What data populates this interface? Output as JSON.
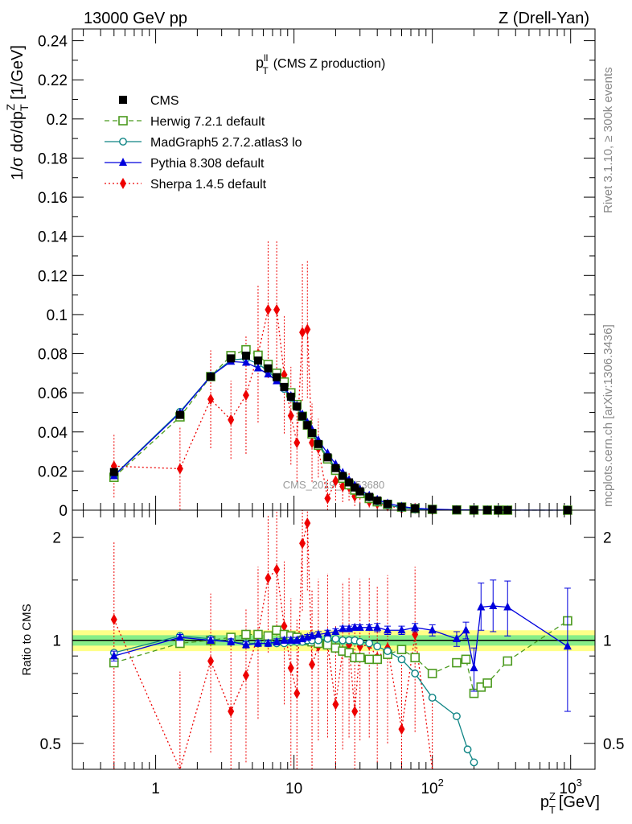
{
  "header": {
    "energy_label": "13000 GeV pp",
    "process_label": "Z (Drell-Yan)",
    "side_label_top": "Rivet 3.1.10, ≥ 300k events",
    "side_label_bottom": "mcplots.cern.ch [arXiv:1306.3436]"
  },
  "chart_data": [
    {
      "type": "scatter",
      "panel": "main",
      "title_main": "p",
      "title_sup": "ll",
      "title_sub": "T",
      "title_rest": "(CMS Z production)",
      "watermark": "CMS_2019_I1753680",
      "ylabel": "1/σ dσ/dp",
      "ylabel_sub": "T",
      "ylabel_sup": "Z",
      "ylabel_unit": "[1/GeV]",
      "xscale": "log",
      "xlim": [
        0.25,
        1500
      ],
      "ylim": [
        0,
        0.246
      ],
      "yticks": [
        0,
        0.02,
        0.04,
        0.06,
        0.08,
        0.1,
        0.12,
        0.14,
        0.16,
        0.18,
        0.2,
        0.22,
        0.24
      ],
      "ytick_labels": [
        "0",
        "0.02",
        "0.04",
        "0.06",
        "0.08",
        "0.1",
        "0.12",
        "0.14",
        "0.16",
        "0.18",
        "0.2",
        "0.22",
        "0.24"
      ],
      "legend_position": "top-left",
      "series": [
        {
          "name": "CMS",
          "color": "#000000",
          "marker": "filled-square",
          "line": "none",
          "x": [
            0.5,
            1.5,
            2.5,
            3.5,
            4.5,
            5.5,
            6.5,
            7.5,
            8.5,
            9.5,
            10.5,
            11.5,
            12.5,
            13.5,
            15,
            17.5,
            20,
            22.5,
            25,
            27.5,
            30,
            35,
            40,
            47.5,
            60,
            75,
            100,
            150,
            200,
            250,
            300,
            350,
            950
          ],
          "y": [
            0.0195,
            0.0487,
            0.0682,
            0.0776,
            0.079,
            0.0765,
            0.0725,
            0.068,
            0.063,
            0.058,
            0.053,
            0.048,
            0.0435,
            0.0395,
            0.0338,
            0.027,
            0.0215,
            0.0175,
            0.0142,
            0.0116,
            0.0096,
            0.0068,
            0.0049,
            0.0032,
            0.0017,
            0.0009,
            0.00045,
            0.00016,
            8e-05,
            4e-05,
            2e-05,
            1e-05,
            1e-06
          ]
        },
        {
          "name": "Herwig 7.2.1 default",
          "color": "#4b9a1e",
          "marker": "open-square",
          "line": "dashed",
          "x": [
            0.5,
            1.5,
            2.5,
            3.5,
            4.5,
            5.5,
            6.5,
            7.5,
            8.5,
            9.5,
            10.5,
            11.5,
            12.5,
            13.5,
            15,
            17.5,
            20,
            22.5,
            25,
            27.5,
            30,
            35,
            40,
            47.5,
            60,
            75,
            100,
            150,
            200,
            250,
            300,
            350,
            950
          ],
          "y": [
            0.0168,
            0.0477,
            0.0683,
            0.079,
            0.082,
            0.0792,
            0.0745,
            0.07,
            0.0655,
            0.06,
            0.054,
            0.048,
            0.0435,
            0.039,
            0.0332,
            0.0262,
            0.0204,
            0.0163,
            0.013,
            0.0103,
            0.0085,
            0.006,
            0.0043,
            0.0029,
            0.0016,
            0.0008,
            0.0004,
            0.00014,
            6e-05,
            3e-05,
            1.5e-05,
            1e-05,
            1e-06
          ]
        },
        {
          "name": "MadGraph5 2.7.2.atlas3 lo",
          "color": "#0f8585",
          "marker": "open-circle",
          "line": "solid",
          "x": [
            0.5,
            1.5,
            2.5,
            3.5,
            4.5,
            5.5,
            6.5,
            7.5,
            8.5,
            9.5,
            10.5,
            11.5,
            12.5,
            13.5,
            15,
            17.5,
            20,
            22.5,
            25,
            27.5,
            30,
            35,
            40,
            47.5,
            60,
            75,
            100,
            150,
            200
          ],
          "y": [
            0.0178,
            0.0503,
            0.0686,
            0.0767,
            0.0775,
            0.0748,
            0.0712,
            0.0668,
            0.062,
            0.0575,
            0.0527,
            0.0478,
            0.0434,
            0.0396,
            0.034,
            0.0272,
            0.0216,
            0.0176,
            0.0142,
            0.0116,
            0.0095,
            0.0065,
            0.0045,
            0.0027,
            0.0012,
            0.0005,
            0.00018,
            3e-05,
            1.2e-05
          ]
        },
        {
          "name": "Pythia 8.308 default",
          "color": "#0000dd",
          "marker": "filled-triangle",
          "line": "solid",
          "x": [
            0.5,
            1.5,
            2.5,
            3.5,
            4.5,
            5.5,
            6.5,
            7.5,
            8.5,
            9.5,
            10.5,
            11.5,
            12.5,
            13.5,
            15,
            17.5,
            20,
            22.5,
            25,
            27.5,
            30,
            35,
            40,
            47.5,
            60,
            75,
            100,
            150,
            200,
            250,
            300,
            350,
            950
          ],
          "y": [
            0.0175,
            0.0498,
            0.0685,
            0.076,
            0.0755,
            0.0726,
            0.0695,
            0.066,
            0.0625,
            0.0584,
            0.0535,
            0.049,
            0.0448,
            0.0412,
            0.0358,
            0.0291,
            0.0235,
            0.0192,
            0.0155,
            0.0127,
            0.0106,
            0.0075,
            0.0054,
            0.0035,
            0.0019,
            0.001,
            0.00048,
            0.00017,
            8e-05,
            5e-05,
            3e-05,
            2e-05,
            1e-06
          ]
        },
        {
          "name": "Sherpa 1.4.5 default",
          "color": "#ee0000",
          "marker": "filled-diamond",
          "line": "dotted",
          "x": [
            0.5,
            1.5,
            2.5,
            3.5,
            4.5,
            5.5,
            6.5,
            7.5,
            8.5,
            9.5,
            10.5,
            11.5,
            12.5,
            13.5,
            15,
            17.5,
            20,
            22.5,
            25,
            27.5,
            30,
            35,
            40,
            47.5,
            60,
            75,
            100
          ],
          "y": [
            0.0225,
            0.0212,
            0.0567,
            0.0462,
            0.0588,
            0.0798,
            0.1025,
            0.1025,
            0.0692,
            0.0483,
            0.0345,
            0.0909,
            0.0924,
            0.0345,
            0.0317,
            0.006,
            0.0149,
            0.0121,
            0.0119,
            0.0071,
            0.0085,
            0.0044,
            0.0034,
            0.0022,
            0.0009,
            0.0009,
            0.0002
          ],
          "err": [
            0.016,
            0.021,
            0.025,
            0.02,
            0.03,
            0.035,
            0.035,
            0.035,
            0.03,
            0.025,
            0.02,
            0.035,
            0.035,
            0.02,
            0.015,
            0.01,
            0.01,
            0.008,
            0.007,
            0.005,
            0.005,
            0.003,
            0.002,
            0.0015,
            0.001,
            0.0008,
            0.0003
          ]
        }
      ]
    },
    {
      "type": "line",
      "panel": "ratio",
      "ylabel": "Ratio to CMS",
      "xlabel": "p",
      "xlabel_sup": "Z",
      "xlabel_sub": "T",
      "xlabel_unit": "[GeV]",
      "xscale": "log",
      "yscale": "log",
      "xlim": [
        0.25,
        1500
      ],
      "ylim": [
        0.42,
        2.4
      ],
      "xticks": [
        1,
        10,
        100,
        1000
      ],
      "xtick_labels": [
        {
          "base": "1",
          "exp": ""
        },
        {
          "base": "10",
          "exp": ""
        },
        {
          "base": "10",
          "exp": "2"
        },
        {
          "base": "10",
          "exp": "3"
        }
      ],
      "yticks": [
        0.5,
        1,
        2
      ],
      "ytick_labels": [
        "0.5",
        "1",
        "2"
      ],
      "band": {
        "outer_color": "#ffff88",
        "inner_color": "#88ee88",
        "reference": 1
      },
      "series": [
        {
          "name": "Herwig 7.2.1 default",
          "color": "#4b9a1e",
          "marker": "open-square",
          "line": "dashed",
          "x": [
            0.5,
            1.5,
            2.5,
            3.5,
            4.5,
            5.5,
            6.5,
            7.5,
            8.5,
            9.5,
            10.5,
            11.5,
            12.5,
            13.5,
            15,
            17.5,
            20,
            22.5,
            25,
            27.5,
            30,
            35,
            40,
            47.5,
            60,
            75,
            100,
            150,
            175,
            200,
            225,
            250,
            350,
            950
          ],
          "y": [
            0.86,
            0.98,
            1.0,
            1.02,
            1.04,
            1.04,
            1.03,
            1.07,
            1.04,
            1.03,
            1.02,
            1.0,
            1.0,
            0.99,
            0.98,
            0.97,
            0.95,
            0.93,
            0.92,
            0.89,
            0.89,
            0.88,
            0.88,
            0.91,
            0.94,
            0.89,
            0.8,
            0.86,
            0.88,
            0.7,
            0.73,
            0.75,
            0.87,
            1.14
          ]
        },
        {
          "name": "MadGraph5 2.7.2.atlas3 lo",
          "color": "#0f8585",
          "marker": "open-circle",
          "line": "solid",
          "x": [
            0.5,
            1.5,
            2.5,
            3.5,
            4.5,
            5.5,
            6.5,
            7.5,
            8.5,
            9.5,
            10.5,
            11.5,
            12.5,
            13.5,
            15,
            17.5,
            20,
            22.5,
            25,
            27.5,
            30,
            35,
            40,
            47.5,
            60,
            75,
            100,
            150,
            180,
            200
          ],
          "y": [
            0.92,
            1.03,
            1.01,
            0.99,
            0.98,
            0.98,
            0.98,
            0.98,
            0.98,
            0.99,
            0.99,
            0.99,
            1.0,
            1.0,
            1.0,
            1.01,
            1.01,
            1.0,
            1.0,
            1.0,
            0.99,
            0.98,
            0.96,
            0.93,
            0.88,
            0.8,
            0.68,
            0.6,
            0.48,
            0.44
          ]
        },
        {
          "name": "Pythia 8.308 default",
          "color": "#0000dd",
          "marker": "filled-triangle",
          "line": "solid",
          "x": [
            0.5,
            1.5,
            2.5,
            3.5,
            4.5,
            5.5,
            6.5,
            7.5,
            8.5,
            9.5,
            10.5,
            11.5,
            12.5,
            13.5,
            15,
            17.5,
            20,
            22.5,
            25,
            27.5,
            30,
            35,
            40,
            47.5,
            60,
            75,
            100,
            150,
            175,
            200,
            225,
            275,
            350,
            950
          ],
          "y": [
            0.9,
            1.02,
            1.0,
            0.99,
            0.97,
            0.98,
            0.98,
            0.99,
            1.0,
            1.0,
            1.0,
            1.01,
            1.02,
            1.03,
            1.04,
            1.05,
            1.06,
            1.08,
            1.08,
            1.09,
            1.09,
            1.09,
            1.09,
            1.07,
            1.07,
            1.09,
            1.07,
            1.01,
            1.07,
            0.83,
            1.25,
            1.26,
            1.25,
            0.96
          ],
          "err_low": [
            0.03,
            0.02,
            0.02,
            0.02,
            0.02,
            0.02,
            0.02,
            0.02,
            0.02,
            0.02,
            0.02,
            0.02,
            0.02,
            0.02,
            0.02,
            0.02,
            0.02,
            0.02,
            0.02,
            0.02,
            0.02,
            0.02,
            0.03,
            0.03,
            0.03,
            0.03,
            0.04,
            0.05,
            0.06,
            0.12,
            0.18,
            0.2,
            0.22,
            0.34
          ],
          "err_high": [
            0.03,
            0.02,
            0.02,
            0.02,
            0.02,
            0.02,
            0.02,
            0.02,
            0.02,
            0.02,
            0.02,
            0.02,
            0.02,
            0.02,
            0.02,
            0.02,
            0.02,
            0.02,
            0.02,
            0.02,
            0.02,
            0.02,
            0.03,
            0.03,
            0.03,
            0.03,
            0.04,
            0.05,
            0.06,
            0.12,
            0.22,
            0.24,
            0.24,
            0.46
          ]
        },
        {
          "name": "Sherpa 1.4.5 default",
          "color": "#ee0000",
          "marker": "filled-diamond",
          "line": "dotted",
          "x": [
            0.5,
            1.5,
            2.5,
            3.5,
            4.5,
            5.5,
            6.5,
            7.5,
            8.5,
            9.5,
            10.5,
            11.5,
            12.5,
            13.5,
            15,
            17.5,
            20,
            22.5,
            25,
            27.5,
            30,
            35,
            40,
            47.5,
            60,
            75,
            100
          ],
          "y": [
            1.15,
            0.41,
            0.87,
            0.62,
            0.79,
            1.04,
            1.52,
            1.61,
            1.1,
            0.83,
            0.7,
            1.92,
            2.2,
            0.85,
            0.96,
            0.97,
            0.65,
            0.93,
            0.97,
            0.62,
            0.96,
            0.97,
            0.89,
            0.95,
            0.55,
            1.04,
            0.39
          ],
          "err_low": [
            0.8,
            0.3,
            0.4,
            0.3,
            0.35,
            0.45,
            0.6,
            0.6,
            0.45,
            0.4,
            0.35,
            0.7,
            0.8,
            0.45,
            0.45,
            0.45,
            0.35,
            0.45,
            0.45,
            0.35,
            0.45,
            0.45,
            0.45,
            0.45,
            0.3,
            0.5,
            0.2
          ],
          "err_high": [
            0.8,
            0.4,
            0.5,
            0.4,
            0.45,
            0.6,
            0.8,
            0.8,
            0.6,
            0.5,
            0.45,
            0.9,
            1.0,
            0.55,
            0.55,
            0.6,
            0.45,
            0.55,
            0.55,
            0.45,
            0.55,
            0.55,
            0.55,
            0.6,
            0.4,
            0.6,
            0.3
          ]
        }
      ]
    }
  ]
}
